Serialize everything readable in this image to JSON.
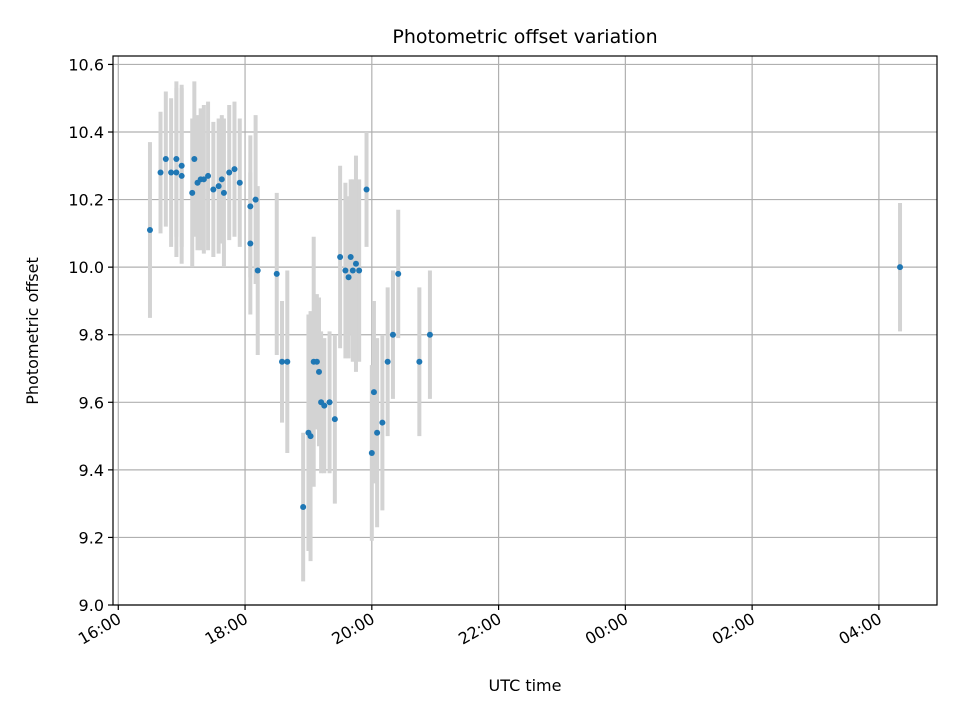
{
  "chart_data": {
    "type": "scatter",
    "title": "Photometric offset variation",
    "xlabel": "UTC time",
    "ylabel": "Photometric offset",
    "x_unit": "UTC datetime",
    "xlim": [
      "15:55",
      "04:55 (next day)"
    ],
    "ylim": [
      9.0,
      10.625
    ],
    "grid": true,
    "legend": "none",
    "colors": {
      "points": "#1f77b4",
      "errorbars": "#d3d3d3",
      "grid": "#b0b0b0"
    },
    "x_ticks": [
      "16:00",
      "18:00",
      "20:00",
      "22:00",
      "00:00",
      "02:00",
      "04:00"
    ],
    "y_ticks": [
      "9.0",
      "9.2",
      "9.4",
      "9.6",
      "9.8",
      "10.0",
      "10.2",
      "10.4",
      "10.6"
    ],
    "series": [
      {
        "x": [
          "16:30",
          "16:40",
          "16:45",
          "16:50",
          "16:55",
          "16:55",
          "17:00",
          "17:00",
          "17:10",
          "17:12",
          "17:15",
          "17:18",
          "17:21",
          "17:25",
          "17:30",
          "17:35",
          "17:38",
          "17:40",
          "17:45",
          "17:50",
          "17:55",
          "18:05",
          "18:10",
          "18:05",
          "18:12",
          "18:30",
          "18:35",
          "18:40",
          "18:55",
          "19:00",
          "19:02",
          "19:05",
          "19:08",
          "19:10",
          "19:12",
          "19:15",
          "19:20",
          "19:25",
          "19:30",
          "19:35",
          "19:38",
          "19:40",
          "19:42",
          "19:45",
          "19:48",
          "19:55",
          "20:00",
          "20:02",
          "20:05",
          "20:10",
          "20:15",
          "20:20",
          "20:25",
          "20:45",
          "20:55",
          "04:20"
        ],
        "y": [
          10.11,
          10.28,
          10.32,
          10.28,
          10.28,
          10.32,
          10.3,
          10.27,
          10.22,
          10.32,
          10.25,
          10.26,
          10.26,
          10.27,
          10.23,
          10.24,
          10.26,
          10.22,
          10.28,
          10.29,
          10.25,
          10.18,
          10.2,
          10.07,
          9.99,
          9.98,
          9.72,
          9.72,
          9.29,
          9.51,
          9.5,
          9.72,
          9.72,
          9.69,
          9.6,
          9.59,
          9.6,
          9.55,
          10.03,
          9.99,
          9.97,
          10.03,
          9.99,
          10.01,
          9.99,
          10.23,
          9.45,
          9.63,
          9.51,
          9.54,
          9.72,
          9.8,
          9.98,
          9.72,
          9.8,
          10.0
        ],
        "err": [
          0.26,
          0.18,
          0.2,
          0.22,
          0.25,
          0.23,
          0.24,
          0.26,
          0.22,
          0.23,
          0.2,
          0.21,
          0.22,
          0.22,
          0.2,
          0.2,
          0.19,
          0.22,
          0.2,
          0.2,
          0.19,
          0.21,
          0.25,
          0.21,
          0.25,
          0.24,
          0.18,
          0.27,
          0.22,
          0.35,
          0.37,
          0.37,
          0.2,
          0.22,
          0.21,
          0.2,
          0.21,
          0.25,
          0.27,
          0.26,
          0.24,
          0.23,
          0.27,
          0.32,
          0.27,
          0.17,
          0.26,
          0.27,
          0.28,
          0.26,
          0.22,
          0.19,
          0.19,
          0.22,
          0.19,
          0.19
        ]
      }
    ]
  }
}
